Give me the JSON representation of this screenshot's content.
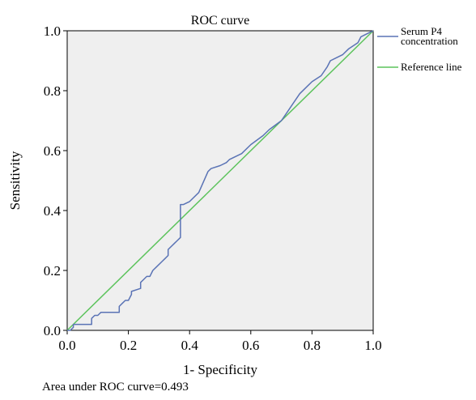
{
  "chart_data": {
    "type": "line",
    "title": "ROC curve",
    "xlabel": "1- Specificity",
    "ylabel": "Sensitivity",
    "xlim": [
      0,
      1
    ],
    "ylim": [
      0,
      1
    ],
    "xticks": [
      "0.0",
      "0.2",
      "0.4",
      "0.6",
      "0.8",
      "1.0"
    ],
    "yticks": [
      "0.0",
      "0.2",
      "0.4",
      "0.6",
      "0.8",
      "1.0"
    ],
    "grid": false,
    "legend_position": "right",
    "plot_background": "#efefef",
    "series": [
      {
        "name": "Serum P4 concentration",
        "color": "#5a73b5",
        "x": [
          0,
          0.01,
          0.02,
          0.02,
          0.08,
          0.08,
          0.09,
          0.1,
          0.11,
          0.12,
          0.17,
          0.17,
          0.18,
          0.19,
          0.2,
          0.21,
          0.21,
          0.24,
          0.24,
          0.25,
          0.26,
          0.27,
          0.28,
          0.29,
          0.31,
          0.32,
          0.33,
          0.33,
          0.35,
          0.36,
          0.37,
          0.37,
          0.38,
          0.4,
          0.43,
          0.46,
          0.47,
          0.5,
          0.52,
          0.53,
          0.57,
          0.6,
          0.64,
          0.66,
          0.7,
          0.72,
          0.74,
          0.76,
          0.78,
          0.8,
          0.83,
          0.85,
          0.86,
          0.88,
          0.9,
          0.92,
          0.95,
          0.96,
          0.98,
          1.0
        ],
        "y": [
          0,
          0,
          0.01,
          0.02,
          0.02,
          0.04,
          0.05,
          0.05,
          0.06,
          0.06,
          0.06,
          0.08,
          0.09,
          0.1,
          0.1,
          0.12,
          0.13,
          0.14,
          0.16,
          0.17,
          0.18,
          0.18,
          0.2,
          0.21,
          0.23,
          0.24,
          0.25,
          0.27,
          0.29,
          0.3,
          0.31,
          0.42,
          0.42,
          0.43,
          0.46,
          0.53,
          0.54,
          0.55,
          0.56,
          0.57,
          0.59,
          0.62,
          0.65,
          0.67,
          0.7,
          0.73,
          0.76,
          0.79,
          0.81,
          0.83,
          0.85,
          0.88,
          0.9,
          0.91,
          0.92,
          0.94,
          0.96,
          0.98,
          0.99,
          1.0
        ]
      },
      {
        "name": "Reference line",
        "color": "#5cc35c",
        "x": [
          0,
          1
        ],
        "y": [
          0,
          1
        ]
      }
    ],
    "annotation": "Area under ROC curve=0.493"
  }
}
